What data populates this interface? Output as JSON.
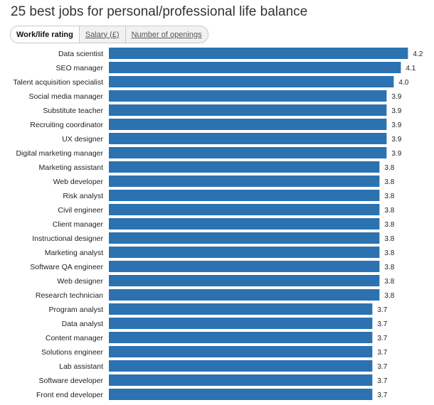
{
  "title": "25 best jobs for personal/professional life balance",
  "tabs": [
    {
      "label": "Work/life rating",
      "active": true
    },
    {
      "label": "Salary (£)",
      "active": false
    },
    {
      "label": "Number of openings",
      "active": false
    }
  ],
  "colors": {
    "bar": "#2c72b0"
  },
  "chart_data": {
    "type": "bar",
    "orientation": "horizontal",
    "title": "25 best jobs for personal/professional life balance",
    "xlabel": "",
    "ylabel": "",
    "grid": false,
    "categories": [
      "Data scientist",
      "SEO manager",
      "Talent acquisition specialist",
      "Social media manager",
      "Substitute teacher",
      "Recruiting coordinator",
      "UX designer",
      "Digital marketing manager",
      "Marketing assistant",
      "Web developer",
      "Risk analyst",
      "Civil engineer",
      "Client manager",
      "Instructional designer",
      "Marketing analyst",
      "Software QA engineer",
      "Web designer",
      "Research technician",
      "Program analyst",
      "Data analyst",
      "Content manager",
      "Solutions engineer",
      "Lab assistant",
      "Software developer",
      "Front end developer"
    ],
    "values": [
      4.2,
      4.1,
      4.0,
      3.9,
      3.9,
      3.9,
      3.9,
      3.9,
      3.8,
      3.8,
      3.8,
      3.8,
      3.8,
      3.8,
      3.8,
      3.8,
      3.8,
      3.8,
      3.7,
      3.7,
      3.7,
      3.7,
      3.7,
      3.7,
      3.7
    ],
    "value_labels": [
      "4.2",
      "4.1",
      "4.0",
      "3.9",
      "3.9",
      "3.9",
      "3.9",
      "3.9",
      "3.8",
      "3.8",
      "3.8",
      "3.8",
      "3.8",
      "3.8",
      "3.8",
      "3.8",
      "3.8",
      "3.8",
      "3.7",
      "3.7",
      "3.7",
      "3.7",
      "3.7",
      "3.7",
      "3.7"
    ]
  }
}
